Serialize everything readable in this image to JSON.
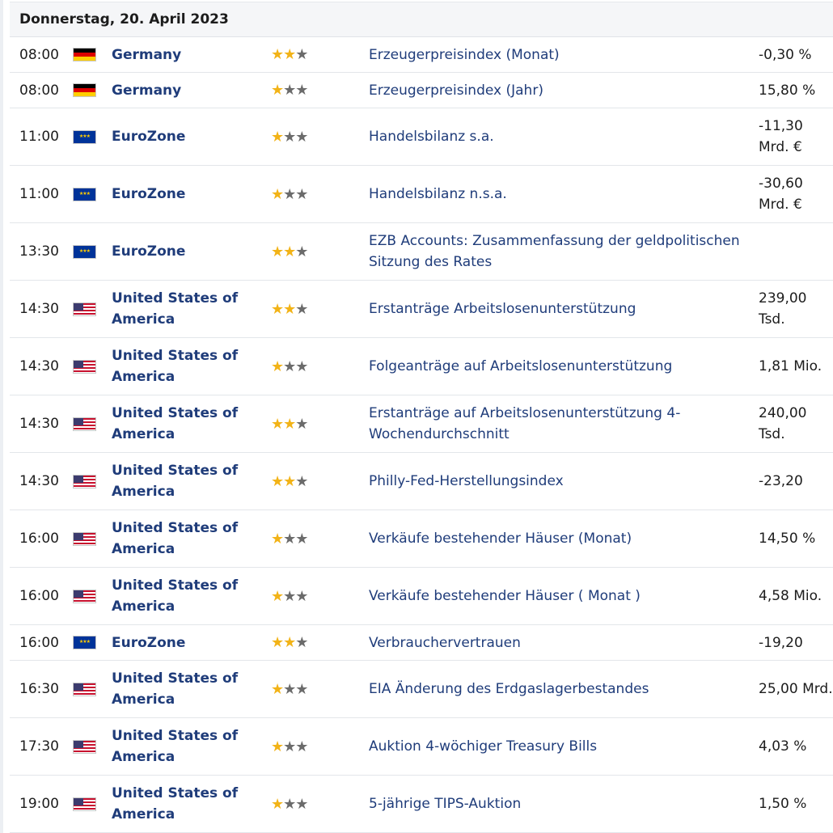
{
  "day_header": "Donnerstag, 20. April 2023",
  "colors": {
    "country_link": "#1f3c7a",
    "star_on": "#f2b317",
    "star_off": "#6b6b6b"
  },
  "rows": [
    {
      "time": "08:00",
      "flag": "germany-flag-icon",
      "country": "Germany",
      "stars": 2,
      "event": "Erzeugerpreisindex (Monat)",
      "value": "-0,30 %"
    },
    {
      "time": "08:00",
      "flag": "germany-flag-icon",
      "country": "Germany",
      "stars": 1,
      "event": "Erzeugerpreisindex (Jahr)",
      "value": "15,80 %"
    },
    {
      "time": "11:00",
      "flag": "eu-flag-icon",
      "country": "EuroZone",
      "stars": 1,
      "event": "Handelsbilanz s.a.",
      "value": "-11,30 Mrd. €"
    },
    {
      "time": "11:00",
      "flag": "eu-flag-icon",
      "country": "EuroZone",
      "stars": 1,
      "event": "Handelsbilanz n.s.a.",
      "value": "-30,60 Mrd. €"
    },
    {
      "time": "13:30",
      "flag": "eu-flag-icon",
      "country": "EuroZone",
      "stars": 2,
      "event": "EZB Accounts: Zusammenfassung der geldpolitischen Sitzung des Rates",
      "value": ""
    },
    {
      "time": "14:30",
      "flag": "us-flag-icon",
      "country": "United States of America",
      "stars": 2,
      "event": "Erstanträge Arbeitslosenunterstützung",
      "value": "239,00 Tsd."
    },
    {
      "time": "14:30",
      "flag": "us-flag-icon",
      "country": "United States of America",
      "stars": 1,
      "event": "Folgeanträge auf Arbeitslosenunterstützung",
      "value": "1,81 Mio."
    },
    {
      "time": "14:30",
      "flag": "us-flag-icon",
      "country": "United States of America",
      "stars": 2,
      "event": "Erstanträge auf Arbeitslosenunterstützung 4-Wochendurchschnitt",
      "value": "240,00 Tsd."
    },
    {
      "time": "14:30",
      "flag": "us-flag-icon",
      "country": "United States of America",
      "stars": 2,
      "event": "Philly-Fed-Herstellungsindex",
      "value": "-23,20"
    },
    {
      "time": "16:00",
      "flag": "us-flag-icon",
      "country": "United States of America",
      "stars": 1,
      "event": "Verkäufe bestehender Häuser (Monat)",
      "value": "14,50 %"
    },
    {
      "time": "16:00",
      "flag": "us-flag-icon",
      "country": "United States of America",
      "stars": 1,
      "event": "Verkäufe bestehender Häuser ( Monat )",
      "value": "4,58 Mio."
    },
    {
      "time": "16:00",
      "flag": "eu-flag-icon",
      "country": "EuroZone",
      "stars": 2,
      "event": "Verbrauchervertrauen",
      "value": "-19,20"
    },
    {
      "time": "16:30",
      "flag": "us-flag-icon",
      "country": "United States of America",
      "stars": 1,
      "event": "EIA Änderung des Erdgaslagerbestandes",
      "value": "25,00 Mrd."
    },
    {
      "time": "17:30",
      "flag": "us-flag-icon",
      "country": "United States of America",
      "stars": 1,
      "event": "Auktion 4-wöchiger Treasury Bills",
      "value": "4,03 %"
    },
    {
      "time": "19:00",
      "flag": "us-flag-icon",
      "country": "United States of America",
      "stars": 1,
      "event": "5-jährige TIPS-Auktion",
      "value": "1,50 %"
    }
  ]
}
